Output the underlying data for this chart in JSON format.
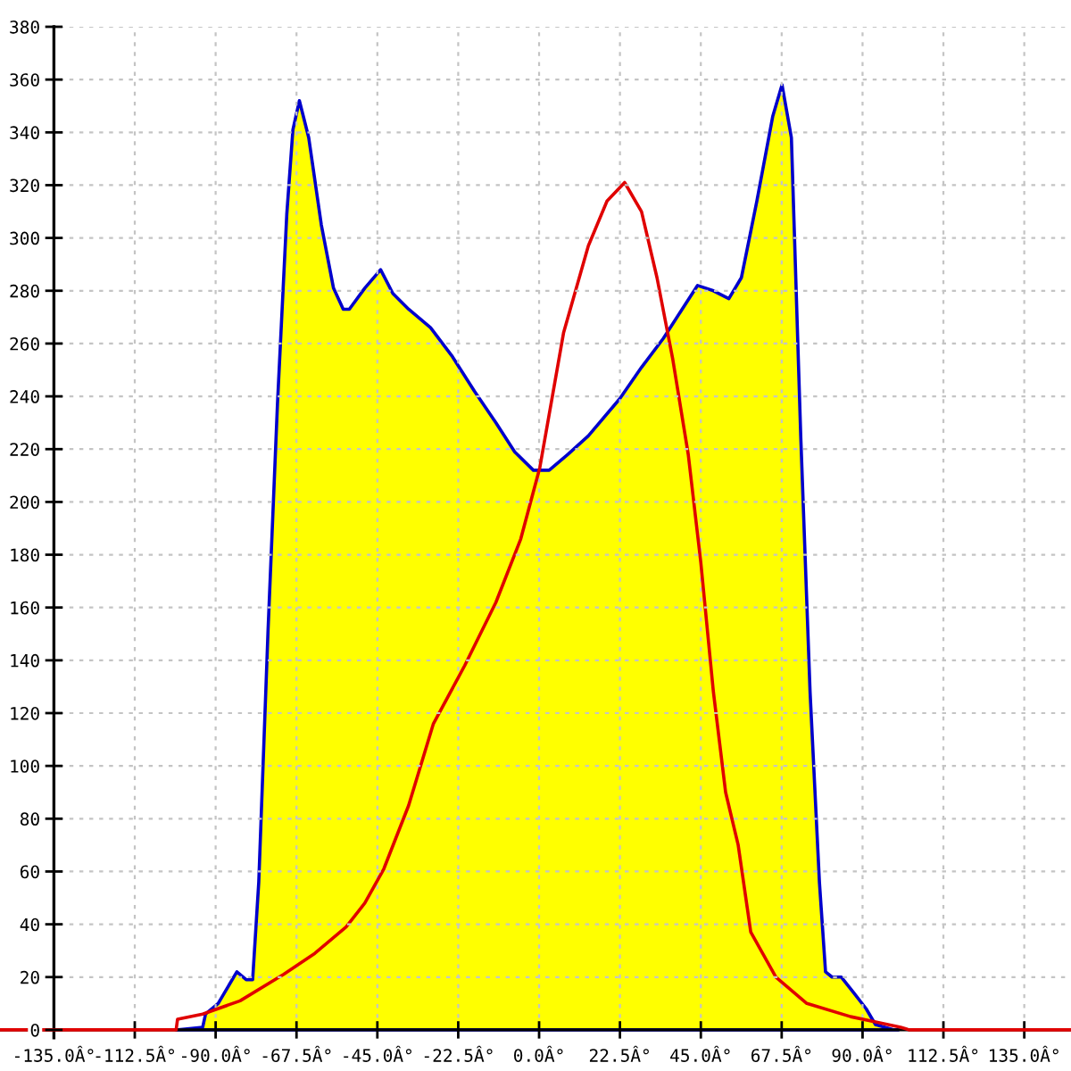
{
  "chart_data": {
    "type": "area",
    "xlim": [
      -150,
      148
    ],
    "ylim": [
      -3,
      380
    ],
    "xticks": [
      {
        "value": -135,
        "label": "-135.0Â°"
      },
      {
        "value": -112.5,
        "label": "-112.5Â°"
      },
      {
        "value": -90,
        "label": "-90.0Â°"
      },
      {
        "value": -67.5,
        "label": "-67.5Â°"
      },
      {
        "value": -45,
        "label": "-45.0Â°"
      },
      {
        "value": -22.5,
        "label": "-22.5Â°"
      },
      {
        "value": 0,
        "label": "0.0Â°"
      },
      {
        "value": 22.5,
        "label": "22.5Â°"
      },
      {
        "value": 45,
        "label": "45.0Â°"
      },
      {
        "value": 67.5,
        "label": "67.5Â°"
      },
      {
        "value": 90,
        "label": "90.0Â°"
      },
      {
        "value": 112.5,
        "label": "112.5Â°"
      },
      {
        "value": 135,
        "label": "135.0Â°"
      }
    ],
    "yticks": [
      0,
      20,
      40,
      60,
      80,
      100,
      120,
      140,
      160,
      180,
      200,
      220,
      240,
      260,
      280,
      300,
      320,
      340,
      360,
      380
    ],
    "grid": true,
    "series": [
      {
        "color": "#ffff00",
        "x": [
          -101,
          -93.6,
          -92.8,
          -89.3,
          -84.1,
          -81.5,
          -79.7,
          -78,
          -75.4,
          -72.8,
          -70.2,
          -68.5,
          -66.7,
          -64.1,
          -60.6,
          -57.2,
          -54.5,
          -52.8,
          -48.5,
          -44.1,
          -40.7,
          -36.3,
          -30.2,
          -24.1,
          -18,
          -12,
          -6.8,
          -1.6,
          2.8,
          8,
          13.7,
          22.4,
          28.5,
          34.6,
          39.8,
          44.1,
          48.5,
          52.8,
          56.3,
          60.6,
          65,
          67.6,
          70.2,
          72.8,
          75.4,
          78,
          79.7,
          81.5,
          84.1,
          87.6,
          91,
          93.6,
          98.8,
          100
        ],
        "values": [
          0,
          1,
          6,
          10,
          22,
          19,
          19,
          56,
          152,
          237,
          309,
          341,
          352,
          338,
          305,
          281,
          273,
          273,
          281,
          288,
          279,
          273,
          266,
          255,
          242,
          230,
          219,
          212,
          212,
          218,
          225,
          239,
          251,
          262,
          273,
          282,
          280,
          277,
          285,
          314,
          346,
          358,
          338,
          225,
          128,
          56,
          22,
          20,
          20,
          14,
          8,
          2,
          0,
          0
        ]
      },
      {
        "type": "line",
        "color": "#e00000",
        "x": [
          -150,
          -101,
          -100.6,
          -93.6,
          -83.2,
          -71.1,
          -62.4,
          -53.7,
          -48.5,
          -43.2,
          -36.3,
          -29.4,
          -20.7,
          -12,
          -5.1,
          0.2,
          6.8,
          13.7,
          18.9,
          23.8,
          28.5,
          32.8,
          37.2,
          41.5,
          45,
          48.5,
          51.9,
          55.4,
          58.9,
          65.9,
          74.5,
          86.7,
          93.6,
          100.6,
          103,
          148
        ],
        "values": [
          0,
          0,
          4,
          6,
          11,
          21,
          29,
          39,
          48,
          61,
          85,
          116,
          138,
          162,
          186,
          213,
          264,
          297,
          314,
          321,
          310,
          285,
          254,
          218,
          177,
          128,
          90,
          70,
          37,
          20,
          10,
          5,
          3,
          1,
          0,
          0
        ]
      }
    ]
  }
}
